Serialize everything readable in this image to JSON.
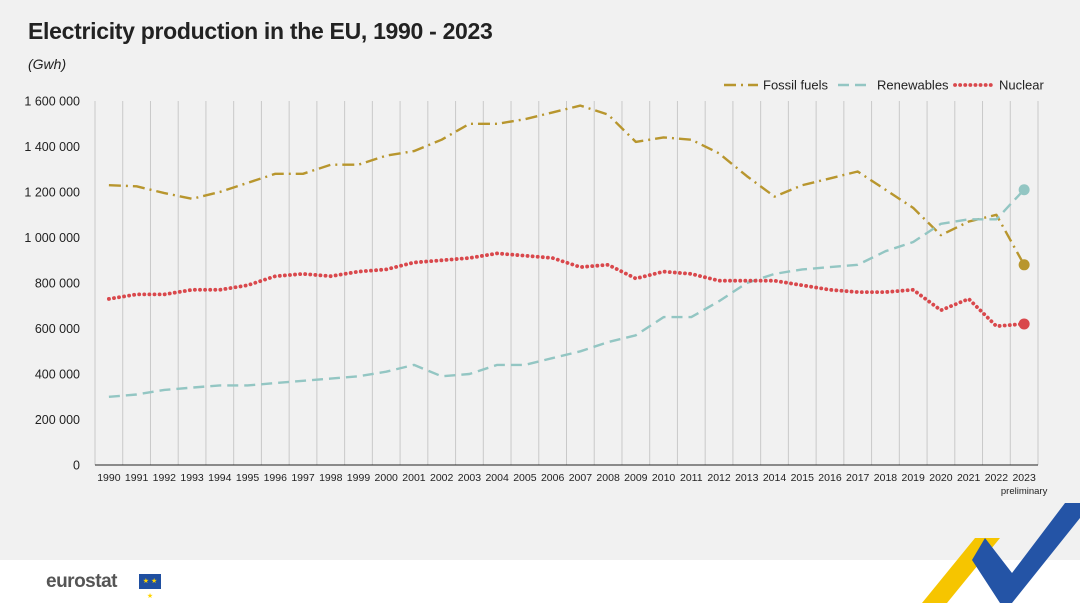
{
  "header": {
    "title": "Electricity production in the EU, 1990 - 2023",
    "unit": "(Gwh)"
  },
  "footer": {
    "logo_text": "eurostat"
  },
  "colors": {
    "fossil": "#b8962e",
    "renewables": "#93c6c3",
    "nuclear": "#d9484c",
    "grid": "#c9c9c9",
    "axis": "#222222",
    "accent_yellow": "#f6c500",
    "accent_blue": "#2454a6"
  },
  "chart_data": {
    "type": "line",
    "title": "Electricity production in the EU, 1990 - 2023",
    "ylabel": "(Gwh)",
    "xlabel": "",
    "ylim": [
      0,
      1600000
    ],
    "yticks": [
      0,
      200000,
      400000,
      600000,
      800000,
      1000000,
      1200000,
      1400000,
      1600000
    ],
    "ytick_labels": [
      "0",
      "200 000",
      "400 000",
      "600 000",
      "800 000",
      "1 000 000",
      "1 200 000",
      "1 400 000",
      "1 600 000"
    ],
    "x": [
      "1990",
      "1991",
      "1992",
      "1993",
      "1994",
      "1995",
      "1996",
      "1997",
      "1998",
      "1999",
      "2000",
      "2001",
      "2002",
      "2003",
      "2004",
      "2005",
      "2006",
      "2007",
      "2008",
      "2009",
      "2010",
      "2011",
      "2012",
      "2013",
      "2014",
      "2015",
      "2016",
      "2017",
      "2018",
      "2019",
      "2020",
      "2021",
      "2022",
      "2023"
    ],
    "x_note": "preliminary",
    "legend_position": "top-right",
    "grid": "vertical",
    "series": [
      {
        "name": "Fossil fuels",
        "style": "dash-dot",
        "values": [
          1230000,
          1225000,
          1195000,
          1170000,
          1200000,
          1240000,
          1280000,
          1280000,
          1320000,
          1320000,
          1360000,
          1380000,
          1430000,
          1500000,
          1500000,
          1520000,
          1550000,
          1580000,
          1540000,
          1420000,
          1440000,
          1430000,
          1370000,
          1270000,
          1180000,
          1230000,
          1260000,
          1290000,
          1210000,
          1130000,
          1010000,
          1070000,
          1100000,
          880000
        ]
      },
      {
        "name": "Renewables",
        "style": "dashed",
        "values": [
          300000,
          310000,
          330000,
          340000,
          350000,
          350000,
          360000,
          370000,
          380000,
          390000,
          410000,
          440000,
          390000,
          400000,
          440000,
          440000,
          470000,
          500000,
          540000,
          570000,
          650000,
          650000,
          720000,
          800000,
          840000,
          860000,
          870000,
          880000,
          940000,
          980000,
          1060000,
          1080000,
          1080000,
          1210000
        ]
      },
      {
        "name": "Nuclear",
        "style": "dotted",
        "values": [
          730000,
          750000,
          750000,
          770000,
          770000,
          790000,
          830000,
          840000,
          830000,
          850000,
          860000,
          890000,
          900000,
          910000,
          930000,
          920000,
          910000,
          870000,
          880000,
          820000,
          850000,
          840000,
          810000,
          810000,
          810000,
          790000,
          770000,
          760000,
          760000,
          770000,
          680000,
          730000,
          610000,
          620000
        ]
      }
    ]
  }
}
